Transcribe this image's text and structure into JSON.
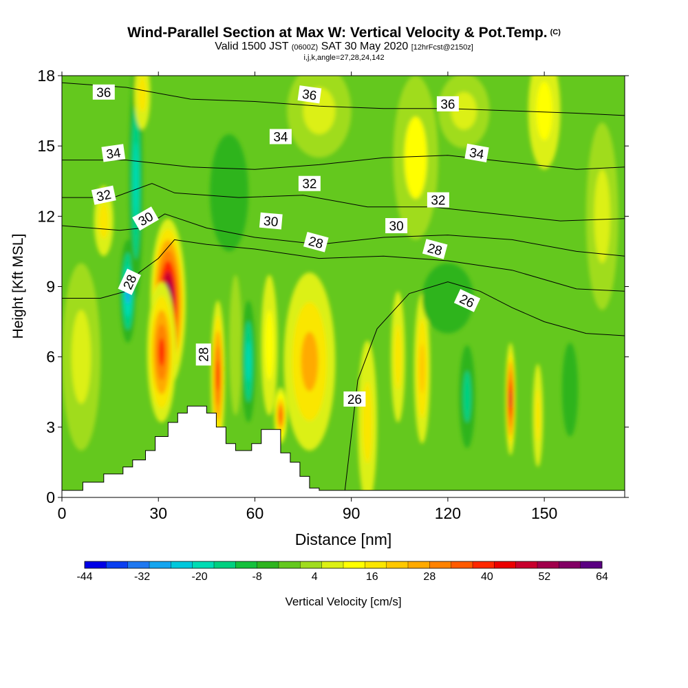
{
  "header": {
    "title": "Wind-Parallel Section at Max W: Vertical Velocity & Pot.Temp.",
    "title_tag": "(C)",
    "subtitle_pre": "Valid 1500 JST",
    "subtitle_utc": "(0600Z)",
    "subtitle_date": "SAT 30 May 2020",
    "subtitle_fcst": "[12hrFcst@2150z]",
    "line3": "i,j,k,angle=27,28,24,142"
  },
  "chart_data": {
    "type": "heatmap",
    "xlabel": "Distance [nm]",
    "ylabel": "Height [Kft MSL]",
    "xlim": [
      0,
      175
    ],
    "ylim": [
      0,
      18
    ],
    "x_ticks": [
      "0",
      "30",
      "60",
      "90",
      "120",
      "150"
    ],
    "y_ticks": [
      "0",
      "3",
      "6",
      "9",
      "12",
      "15",
      "18"
    ],
    "colorbar": {
      "label": "Vertical Velocity [cm/s]",
      "tick_labels": [
        "-44",
        "-32",
        "-20",
        "-8",
        "4",
        "16",
        "28",
        "40",
        "52",
        "64"
      ],
      "colors": [
        "#0000e6",
        "#0a3ff0",
        "#1e78f0",
        "#14a5ef",
        "#00c8dc",
        "#00dcb4",
        "#00d080",
        "#14c03c",
        "#2db41e",
        "#64c81e",
        "#a0dc1e",
        "#dcf014",
        "#ffff00",
        "#fae600",
        "#ffc800",
        "#ffaa00",
        "#ff8200",
        "#ff5a00",
        "#ff2800",
        "#eb0000",
        "#c8002d",
        "#a0004b",
        "#820064",
        "#5a0082"
      ]
    },
    "background_wind_value": 0,
    "wind_features": [
      {
        "x": 33,
        "z": 8.3,
        "width": 5.5,
        "height": 3.6,
        "value": 64
      },
      {
        "x": 31,
        "z": 6.2,
        "width": 4.5,
        "height": 3.0,
        "value": 40
      },
      {
        "x": 20.5,
        "z": 8.8,
        "width": 2.5,
        "height": 2.2,
        "value": -28
      },
      {
        "x": 23,
        "z": 13.5,
        "width": 2.2,
        "height": 5.0,
        "value": -20
      },
      {
        "x": 25,
        "z": 17.2,
        "width": 2.5,
        "height": 1.5,
        "value": 18
      },
      {
        "x": 13,
        "z": 11.8,
        "width": 3.0,
        "height": 1.5,
        "value": 16
      },
      {
        "x": 48.5,
        "z": 5.2,
        "width": 2.2,
        "height": 3.2,
        "value": 40
      },
      {
        "x": 54,
        "z": 6.5,
        "width": 2.0,
        "height": 3.0,
        "value": 4
      },
      {
        "x": 58,
        "z": 5.8,
        "width": 2.2,
        "height": 2.6,
        "value": -20
      },
      {
        "x": 64.5,
        "z": 6.5,
        "width": 2.6,
        "height": 3.0,
        "value": 14
      },
      {
        "x": 77,
        "z": 5.8,
        "width": 8.0,
        "height": 3.8,
        "value": 26
      },
      {
        "x": 68,
        "z": 3.5,
        "width": 2.0,
        "height": 1.2,
        "value": 36
      },
      {
        "x": 95,
        "z": 3.2,
        "width": 3.0,
        "height": 3.5,
        "value": 18
      },
      {
        "x": 104.5,
        "z": 6.0,
        "width": 2.2,
        "height": 2.8,
        "value": 18
      },
      {
        "x": 112,
        "z": 5.5,
        "width": 2.5,
        "height": 3.2,
        "value": 22
      },
      {
        "x": 126,
        "z": 4.3,
        "width": 2.5,
        "height": 2.2,
        "value": -14
      },
      {
        "x": 139.5,
        "z": 4.2,
        "width": 1.6,
        "height": 2.4,
        "value": 48
      },
      {
        "x": 148,
        "z": 3.5,
        "width": 1.6,
        "height": 2.2,
        "value": 16
      },
      {
        "x": 158,
        "z": 4.6,
        "width": 2.5,
        "height": 2.0,
        "value": -8
      },
      {
        "x": 150,
        "z": 16.5,
        "width": 5.0,
        "height": 2.5,
        "value": 12
      },
      {
        "x": 110,
        "z": 14.5,
        "width": 7.0,
        "height": 3.5,
        "value": 10
      },
      {
        "x": 80,
        "z": 16.5,
        "width": 10.0,
        "height": 2.0,
        "value": 6
      },
      {
        "x": 125,
        "z": 16.5,
        "width": 8.0,
        "height": 1.6,
        "value": 6
      },
      {
        "x": 168,
        "z": 12.0,
        "width": 5.0,
        "height": 4.0,
        "value": 8
      },
      {
        "x": 6,
        "z": 6.0,
        "width": 6.0,
        "height": 4.0,
        "value": 6
      },
      {
        "x": 52,
        "z": 13.0,
        "width": 6.0,
        "height": 2.5,
        "value": -8
      },
      {
        "x": 120,
        "z": 8.5,
        "width": 8.0,
        "height": 1.5,
        "value": -8
      }
    ],
    "terrain": [
      [
        0,
        0.3
      ],
      [
        6.5,
        0.3
      ],
      [
        6.5,
        0.65
      ],
      [
        13,
        0.65
      ],
      [
        13,
        1.0
      ],
      [
        19,
        1.0
      ],
      [
        19,
        1.3
      ],
      [
        22,
        1.3
      ],
      [
        22,
        1.6
      ],
      [
        26,
        1.6
      ],
      [
        26,
        2.0
      ],
      [
        29,
        2.0
      ],
      [
        29,
        2.6
      ],
      [
        33,
        2.6
      ],
      [
        33,
        3.2
      ],
      [
        36,
        3.2
      ],
      [
        36,
        3.6
      ],
      [
        39,
        3.6
      ],
      [
        39,
        3.9
      ],
      [
        45,
        3.9
      ],
      [
        45,
        3.6
      ],
      [
        48,
        3.6
      ],
      [
        48,
        3.0
      ],
      [
        51,
        3.0
      ],
      [
        51,
        2.3
      ],
      [
        54,
        2.3
      ],
      [
        54,
        2.0
      ],
      [
        59,
        2.0
      ],
      [
        59,
        2.3
      ],
      [
        62,
        2.3
      ],
      [
        62,
        2.9
      ],
      [
        68,
        2.9
      ],
      [
        68,
        1.9
      ],
      [
        71,
        1.9
      ],
      [
        71,
        1.5
      ],
      [
        74,
        1.5
      ],
      [
        74,
        0.9
      ],
      [
        77,
        0.9
      ],
      [
        77,
        0.4
      ],
      [
        80,
        0.4
      ],
      [
        80,
        0.3
      ],
      [
        175,
        0.3
      ]
    ],
    "theta_levels": [
      {
        "label": "36",
        "points": [
          [
            0,
            17.7
          ],
          [
            20,
            17.5
          ],
          [
            40,
            17.0
          ],
          [
            60,
            16.9
          ],
          [
            80,
            16.7
          ],
          [
            100,
            16.6
          ],
          [
            120,
            16.6
          ],
          [
            140,
            16.5
          ],
          [
            160,
            16.4
          ],
          [
            175,
            16.3
          ]
        ]
      },
      {
        "label": "34",
        "points": [
          [
            0,
            14.4
          ],
          [
            20,
            14.4
          ],
          [
            40,
            14.1
          ],
          [
            60,
            14.0
          ],
          [
            80,
            14.2
          ],
          [
            100,
            14.5
          ],
          [
            120,
            14.6
          ],
          [
            140,
            14.3
          ],
          [
            160,
            14.0
          ],
          [
            175,
            14.1
          ]
        ]
      },
      {
        "label": "32",
        "points": [
          [
            0,
            12.8
          ],
          [
            16,
            12.8
          ],
          [
            28,
            13.4
          ],
          [
            35,
            13.0
          ],
          [
            55,
            12.8
          ],
          [
            75,
            12.9
          ],
          [
            95,
            12.4
          ],
          [
            115,
            12.4
          ],
          [
            135,
            12.1
          ],
          [
            155,
            11.8
          ],
          [
            175,
            11.9
          ]
        ]
      },
      {
        "label": "30",
        "points": [
          [
            0,
            11.6
          ],
          [
            18,
            11.4
          ],
          [
            25,
            11.5
          ],
          [
            32,
            12.1
          ],
          [
            45,
            11.5
          ],
          [
            60,
            11.1
          ],
          [
            80,
            10.8
          ],
          [
            100,
            11.1
          ],
          [
            120,
            11.2
          ],
          [
            140,
            11.0
          ],
          [
            160,
            10.5
          ],
          [
            175,
            10.3
          ]
        ]
      },
      {
        "label": "28",
        "points": [
          [
            0,
            8.5
          ],
          [
            12,
            8.5
          ],
          [
            20,
            8.8
          ],
          [
            24,
            9.6
          ],
          [
            30,
            10.2
          ],
          [
            35,
            11.0
          ],
          [
            45,
            10.8
          ],
          [
            60,
            10.6
          ],
          [
            80,
            10.2
          ],
          [
            100,
            10.3
          ],
          [
            120,
            10.1
          ],
          [
            140,
            9.7
          ],
          [
            160,
            8.9
          ],
          [
            175,
            8.8
          ]
        ]
      },
      {
        "label": "26",
        "points": [
          [
            88,
            0.3
          ],
          [
            92,
            5.0
          ],
          [
            98,
            7.2
          ],
          [
            108,
            8.7
          ],
          [
            120,
            9.2
          ],
          [
            130,
            8.8
          ],
          [
            140,
            8.1
          ],
          [
            150,
            7.5
          ],
          [
            163,
            7.0
          ],
          [
            175,
            6.9
          ]
        ]
      }
    ],
    "contour_labels": [
      {
        "text": "36",
        "x": 13,
        "z": 17.3,
        "angle": 0
      },
      {
        "text": "36",
        "x": 77,
        "z": 17.2,
        "angle": 8
      },
      {
        "text": "36",
        "x": 120,
        "z": 16.8,
        "angle": 0
      },
      {
        "text": "34",
        "x": 16,
        "z": 14.7,
        "angle": -8
      },
      {
        "text": "34",
        "x": 68,
        "z": 15.4,
        "angle": 0
      },
      {
        "text": "34",
        "x": 129,
        "z": 14.7,
        "angle": 10
      },
      {
        "text": "32",
        "x": 13,
        "z": 12.9,
        "angle": -12
      },
      {
        "text": "32",
        "x": 77,
        "z": 13.4,
        "angle": 0
      },
      {
        "text": "32",
        "x": 117,
        "z": 12.7,
        "angle": 0
      },
      {
        "text": "30",
        "x": 26,
        "z": 11.9,
        "angle": -30
      },
      {
        "text": "30",
        "x": 65,
        "z": 11.8,
        "angle": 5
      },
      {
        "text": "30",
        "x": 104,
        "z": 11.6,
        "angle": 0
      },
      {
        "text": "28",
        "x": 21,
        "z": 9.2,
        "angle": -65
      },
      {
        "text": "28",
        "x": 44,
        "z": 6.1,
        "angle": -90
      },
      {
        "text": "28",
        "x": 79,
        "z": 10.9,
        "angle": 15
      },
      {
        "text": "28",
        "x": 116,
        "z": 10.6,
        "angle": 15
      },
      {
        "text": "26",
        "x": 91,
        "z": 4.2,
        "angle": 0
      },
      {
        "text": "26",
        "x": 126,
        "z": 8.4,
        "angle": 25
      }
    ]
  }
}
